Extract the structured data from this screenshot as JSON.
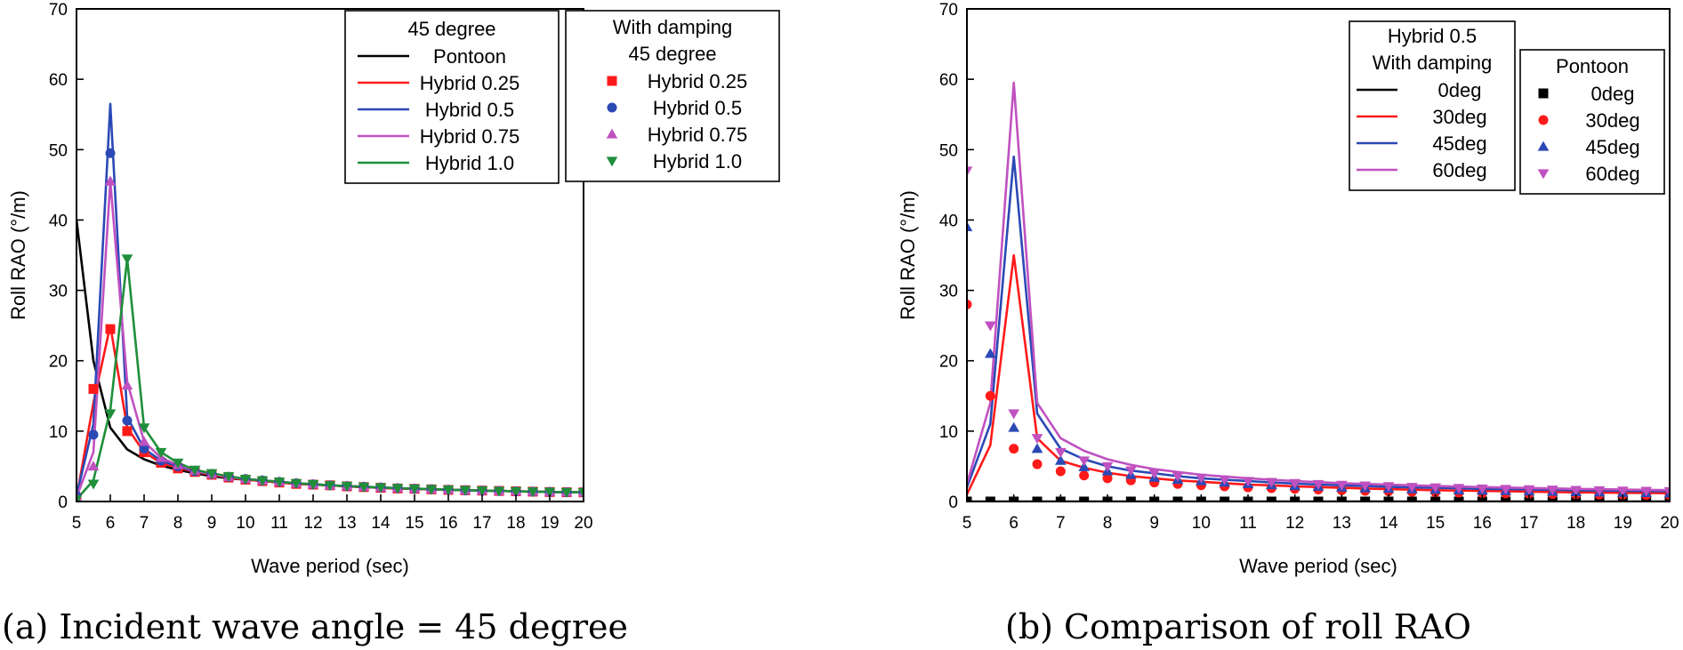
{
  "colors": {
    "black": "#000000",
    "red": "#ff1a1a",
    "blue": "#2b49b5",
    "magenta": "#c051c0",
    "green": "#1f8f3a"
  },
  "chart_data": [
    {
      "id": "a",
      "type": "line",
      "caption": "(a) Incident wave angle = 45 degree",
      "xlabel": "Wave period (sec)",
      "ylabel": "Roll RAO (°/m)",
      "xlim": [
        5,
        20
      ],
      "ylim": [
        0,
        70
      ],
      "xticks": [
        5,
        6,
        7,
        8,
        9,
        10,
        11,
        12,
        13,
        14,
        15,
        16,
        17,
        18,
        19,
        20
      ],
      "yticks": [
        0,
        10,
        20,
        30,
        40,
        50,
        60,
        70
      ],
      "x": [
        5,
        5.5,
        6,
        6.5,
        7,
        7.5,
        8,
        8.5,
        9,
        9.5,
        10,
        10.5,
        11,
        11.5,
        12,
        12.5,
        13,
        13.5,
        14,
        14.5,
        15,
        15.5,
        16,
        16.5,
        17,
        17.5,
        18,
        18.5,
        19,
        19.5,
        20
      ],
      "legends": [
        {
          "title": [
            "45 degree"
          ],
          "entries": [
            {
              "label": "Pontoon",
              "series": 0
            },
            {
              "label": "Hybrid 0.25",
              "series": 1
            },
            {
              "label": "Hybrid 0.5",
              "series": 2
            },
            {
              "label": "Hybrid 0.75",
              "series": 3
            },
            {
              "label": "Hybrid 1.0",
              "series": 4
            }
          ]
        },
        {
          "title": [
            "With damping",
            "45 degree"
          ],
          "entries": [
            {
              "label": "Hybrid 0.25",
              "series": 5
            },
            {
              "label": "Hybrid 0.5",
              "series": 6
            },
            {
              "label": "Hybrid 0.75",
              "series": 7
            },
            {
              "label": "Hybrid 1.0",
              "series": 8
            }
          ]
        }
      ],
      "series": [
        {
          "name": "Pontoon",
          "style": "line",
          "color": "black",
          "values": [
            40,
            20,
            10.5,
            7.4,
            6,
            5.1,
            4.5,
            4,
            3.6,
            3.3,
            3.1,
            2.9,
            2.7,
            2.5,
            2.4,
            2.3,
            2.15,
            2.05,
            1.95,
            1.85,
            1.8,
            1.72,
            1.65,
            1.6,
            1.55,
            1.5,
            1.45,
            1.4,
            1.35,
            1.32,
            1.3
          ]
        },
        {
          "name": "Hybrid 0.25",
          "style": "line",
          "color": "red",
          "values": [
            0.5,
            14,
            25,
            10.5,
            7,
            5.5,
            4.8,
            4.2,
            3.8,
            3.4,
            3.1,
            2.9,
            2.7,
            2.5,
            2.4,
            2.3,
            2.15,
            2.05,
            1.95,
            1.85,
            1.8,
            1.72,
            1.65,
            1.6,
            1.55,
            1.5,
            1.45,
            1.4,
            1.35,
            1.32,
            1.3
          ]
        },
        {
          "name": "Hybrid 0.5",
          "style": "line",
          "color": "blue",
          "values": [
            0.8,
            11,
            56.5,
            12,
            7.5,
            5.8,
            5,
            4.3,
            3.9,
            3.5,
            3.2,
            3,
            2.8,
            2.6,
            2.45,
            2.3,
            2.2,
            2.1,
            2,
            1.9,
            1.82,
            1.75,
            1.68,
            1.6,
            1.55,
            1.5,
            1.45,
            1.4,
            1.36,
            1.32,
            1.3
          ]
        },
        {
          "name": "Hybrid 0.75",
          "style": "line",
          "color": "magenta",
          "values": [
            0.6,
            7,
            45.5,
            17,
            8.5,
            6.2,
            5.2,
            4.4,
            3.9,
            3.5,
            3.2,
            3,
            2.8,
            2.6,
            2.45,
            2.3,
            2.2,
            2.1,
            2,
            1.9,
            1.82,
            1.75,
            1.68,
            1.6,
            1.55,
            1.5,
            1.45,
            1.4,
            1.36,
            1.32,
            1.3
          ]
        },
        {
          "name": "Hybrid 1.0",
          "style": "line",
          "color": "green",
          "values": [
            0.3,
            3,
            13,
            34.5,
            10.5,
            7,
            5.5,
            4.5,
            4,
            3.6,
            3.2,
            3,
            2.8,
            2.6,
            2.45,
            2.3,
            2.2,
            2.1,
            2,
            1.9,
            1.82,
            1.75,
            1.68,
            1.6,
            1.55,
            1.5,
            1.45,
            1.4,
            1.36,
            1.32,
            1.3
          ]
        },
        {
          "name": "Hybrid 0.25",
          "style": "marker",
          "marker": "square",
          "color": "red",
          "values": [
            0.5,
            16,
            24.5,
            10,
            7,
            5.5,
            4.7,
            4.2,
            3.8,
            3.4,
            3.1,
            2.9,
            2.7,
            2.5,
            2.4,
            2.3,
            2.15,
            2.05,
            1.95,
            1.85,
            1.8,
            1.72,
            1.65,
            1.6,
            1.55,
            1.5,
            1.45,
            1.4,
            1.35,
            1.32,
            1.3
          ]
        },
        {
          "name": "Hybrid 0.5",
          "style": "marker",
          "marker": "circle",
          "color": "blue",
          "values": [
            0.8,
            9.5,
            49.5,
            11.5,
            7.5,
            5.8,
            5,
            4.3,
            3.9,
            3.5,
            3.2,
            3,
            2.8,
            2.6,
            2.45,
            2.3,
            2.2,
            2.1,
            2,
            1.9,
            1.82,
            1.75,
            1.68,
            1.6,
            1.55,
            1.5,
            1.45,
            1.4,
            1.36,
            1.32,
            1.3
          ]
        },
        {
          "name": "Hybrid 0.75",
          "style": "marker",
          "marker": "triangle-up",
          "color": "magenta",
          "values": [
            0.6,
            5,
            45.5,
            16.5,
            8.5,
            6.2,
            5.2,
            4.4,
            3.9,
            3.5,
            3.2,
            3,
            2.8,
            2.6,
            2.45,
            2.3,
            2.2,
            2.1,
            2,
            1.9,
            1.82,
            1.75,
            1.68,
            1.6,
            1.55,
            1.5,
            1.45,
            1.4,
            1.36,
            1.32,
            1.3
          ]
        },
        {
          "name": "Hybrid 1.0",
          "style": "marker",
          "marker": "triangle-down",
          "color": "green",
          "values": [
            0.3,
            2.5,
            12.5,
            34.5,
            10.5,
            7,
            5.5,
            4.5,
            4,
            3.6,
            3.2,
            3,
            2.8,
            2.6,
            2.45,
            2.3,
            2.2,
            2.1,
            2,
            1.9,
            1.82,
            1.75,
            1.68,
            1.6,
            1.55,
            1.5,
            1.45,
            1.4,
            1.36,
            1.32,
            1.3
          ]
        }
      ]
    },
    {
      "id": "b",
      "type": "line",
      "caption": "(b) Comparison of roll RAO",
      "xlabel": "Wave period (sec)",
      "ylabel": "Roll RAO (°/m)",
      "xlim": [
        5,
        20
      ],
      "ylim": [
        0,
        70
      ],
      "xticks": [
        5,
        6,
        7,
        8,
        9,
        10,
        11,
        12,
        13,
        14,
        15,
        16,
        17,
        18,
        19,
        20
      ],
      "yticks": [
        0,
        10,
        20,
        30,
        40,
        50,
        60,
        70
      ],
      "x": [
        5,
        5.5,
        6,
        6.5,
        7,
        7.5,
        8,
        8.5,
        9,
        9.5,
        10,
        10.5,
        11,
        11.5,
        12,
        12.5,
        13,
        13.5,
        14,
        14.5,
        15,
        15.5,
        16,
        16.5,
        17,
        17.5,
        18,
        18.5,
        19,
        19.5,
        20
      ],
      "legends": [
        {
          "title": [
            "Hybrid 0.5",
            "With damping"
          ],
          "entries": [
            {
              "label": "0deg",
              "series": 0
            },
            {
              "label": "30deg",
              "series": 1
            },
            {
              "label": "45deg",
              "series": 2
            },
            {
              "label": "60deg",
              "series": 3
            }
          ]
        },
        {
          "title": [
            "Pontoon"
          ],
          "entries": [
            {
              "label": "0deg",
              "series": 4
            },
            {
              "label": "30deg",
              "series": 5
            },
            {
              "label": "45deg",
              "series": 6
            },
            {
              "label": "60deg",
              "series": 7
            }
          ]
        }
      ],
      "series": [
        {
          "name": "0deg",
          "style": "line",
          "color": "black",
          "values": [
            0,
            0,
            0,
            0,
            0,
            0,
            0,
            0,
            0,
            0,
            0,
            0,
            0,
            0,
            0,
            0,
            0,
            0,
            0,
            0,
            0,
            0,
            0,
            0,
            0,
            0,
            0,
            0,
            0,
            0,
            0
          ]
        },
        {
          "name": "30deg",
          "style": "line",
          "color": "red",
          "values": [
            1,
            8,
            35,
            9,
            5.8,
            4.8,
            4.1,
            3.6,
            3.3,
            3,
            2.8,
            2.6,
            2.4,
            2.3,
            2.15,
            2.05,
            1.95,
            1.85,
            1.75,
            1.68,
            1.6,
            1.55,
            1.5,
            1.45,
            1.4,
            1.35,
            1.3,
            1.27,
            1.24,
            1.2,
            1.18
          ]
        },
        {
          "name": "45deg",
          "style": "line",
          "color": "blue",
          "values": [
            2,
            11,
            49,
            12.5,
            7.5,
            6,
            5,
            4.4,
            4,
            3.6,
            3.3,
            3.1,
            2.9,
            2.7,
            2.55,
            2.4,
            2.3,
            2.2,
            2.1,
            2,
            1.95,
            1.88,
            1.8,
            1.75,
            1.7,
            1.65,
            1.6,
            1.55,
            1.52,
            1.48,
            1.45
          ]
        },
        {
          "name": "60deg",
          "style": "line",
          "color": "magenta",
          "values": [
            2.5,
            14,
            59.5,
            14,
            9,
            7.2,
            6,
            5.2,
            4.6,
            4.2,
            3.8,
            3.55,
            3.3,
            3.1,
            2.9,
            2.75,
            2.6,
            2.5,
            2.4,
            2.3,
            2.2,
            2.12,
            2.05,
            1.98,
            1.92,
            1.86,
            1.8,
            1.75,
            1.7,
            1.66,
            1.62
          ]
        },
        {
          "name": "0deg",
          "style": "marker",
          "marker": "square",
          "color": "black",
          "values": [
            0,
            0,
            0,
            0,
            0,
            0,
            0,
            0,
            0,
            0,
            0,
            0,
            0,
            0,
            0,
            0,
            0,
            0,
            0,
            0,
            0,
            0,
            0,
            0,
            0,
            0,
            0,
            0,
            0,
            0,
            0
          ]
        },
        {
          "name": "30deg",
          "style": "marker",
          "marker": "circle",
          "color": "red",
          "values": [
            28,
            15,
            7.5,
            5.3,
            4.3,
            3.7,
            3.3,
            3,
            2.7,
            2.5,
            2.3,
            2.15,
            2,
            1.9,
            1.8,
            1.7,
            1.6,
            1.52,
            1.45,
            1.38,
            1.32,
            1.26,
            1.2,
            1.15,
            1.1,
            1.06,
            1.02,
            0.98,
            0.95,
            0.92,
            0.9
          ]
        },
        {
          "name": "45deg",
          "style": "marker",
          "marker": "triangle-up",
          "color": "blue",
          "values": [
            39,
            21,
            10.5,
            7.5,
            5.8,
            4.9,
            4.3,
            3.8,
            3.4,
            3.1,
            2.9,
            2.7,
            2.5,
            2.35,
            2.2,
            2.1,
            2,
            1.9,
            1.82,
            1.75,
            1.68,
            1.6,
            1.55,
            1.5,
            1.45,
            1.4,
            1.35,
            1.3,
            1.26,
            1.22,
            1.18
          ]
        },
        {
          "name": "60deg",
          "style": "marker",
          "marker": "triangle-down",
          "color": "magenta",
          "values": [
            47,
            25,
            12.5,
            9,
            7,
            5.8,
            5,
            4.4,
            4,
            3.6,
            3.35,
            3.1,
            2.9,
            2.75,
            2.6,
            2.45,
            2.35,
            2.25,
            2.15,
            2.05,
            1.98,
            1.9,
            1.83,
            1.77,
            1.72,
            1.67,
            1.62,
            1.57,
            1.53,
            1.49,
            1.45
          ]
        }
      ]
    }
  ]
}
